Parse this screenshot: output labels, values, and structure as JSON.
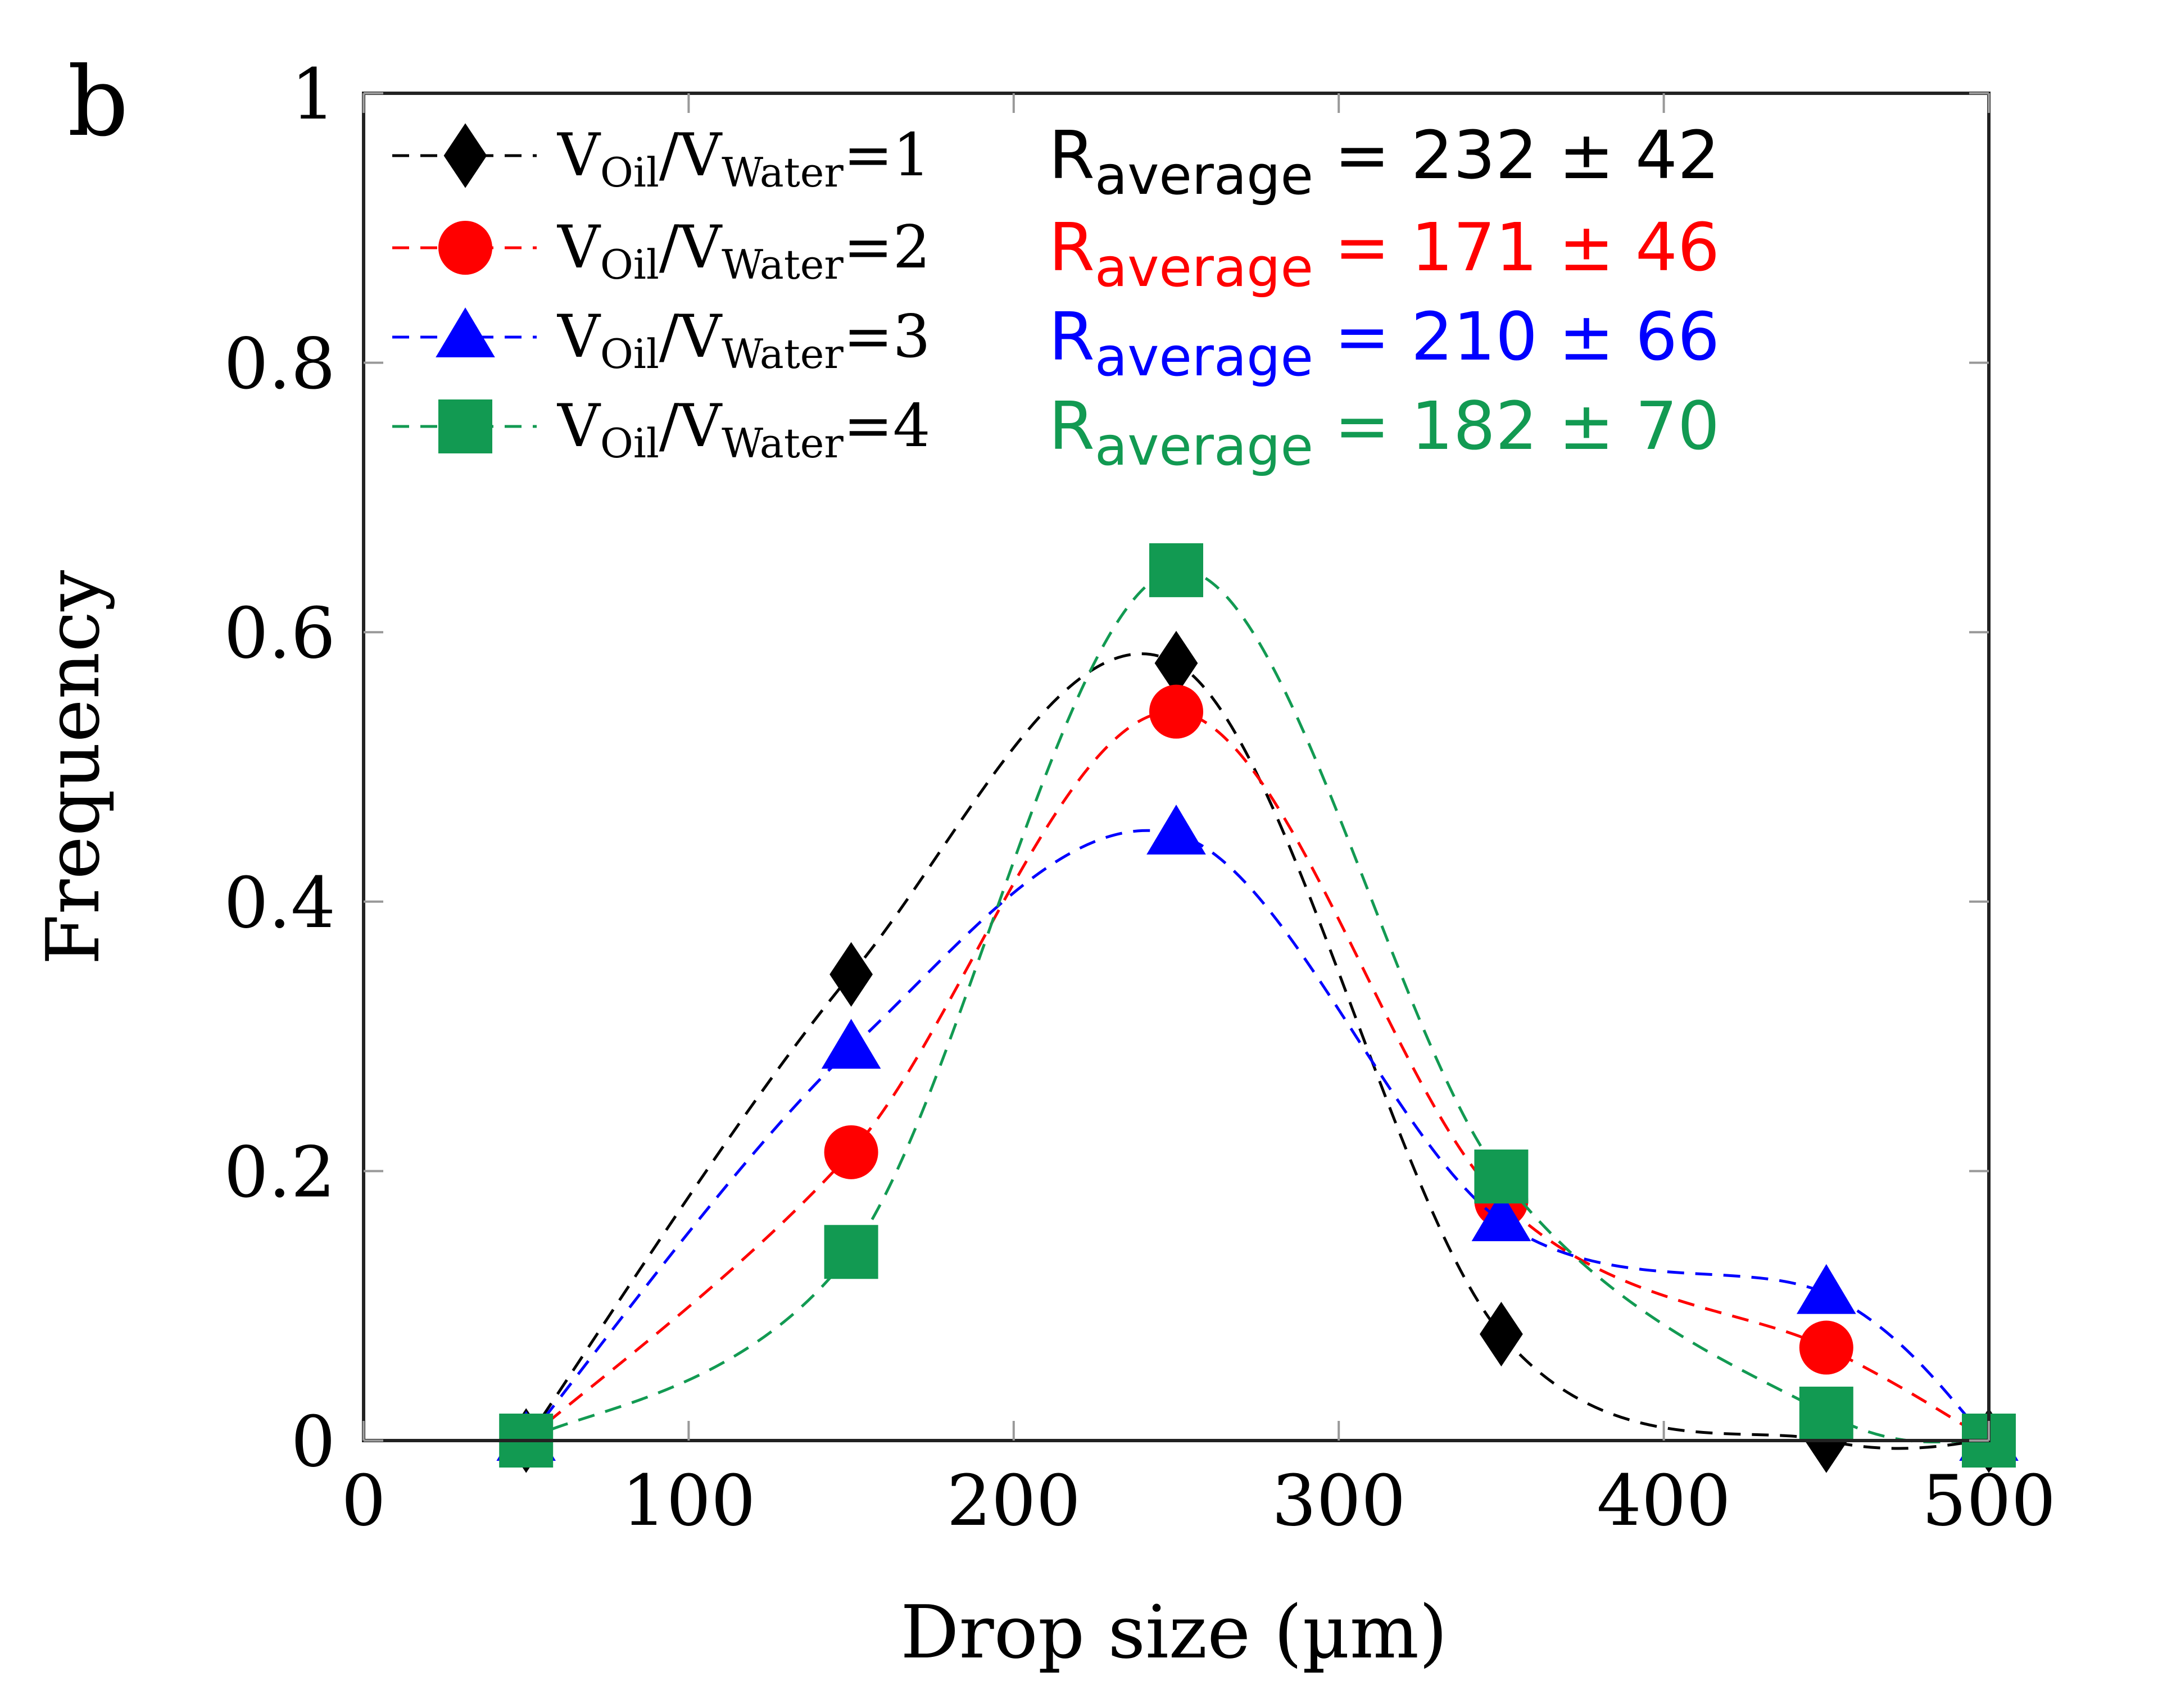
{
  "chart_data": {
    "type": "line",
    "panel_label": "b",
    "xlabel": "Drop size (µm)",
    "ylabel": "Frequency",
    "xlim": [
      0,
      500
    ],
    "ylim": [
      0,
      1
    ],
    "xticks": [
      "0",
      "100",
      "200",
      "300",
      "400",
      "500"
    ],
    "yticks": [
      "0",
      "0.2",
      "0.4",
      "0.6",
      "0.8",
      "1"
    ],
    "grid": false,
    "legend_position": "top-left",
    "x": [
      50,
      150,
      250,
      350,
      450,
      500
    ],
    "series": [
      {
        "name": "VOil/VWater=1",
        "ratio": "1",
        "marker": "diamond",
        "color": "#000000",
        "values": [
          0,
          0.346,
          0.577,
          0.079,
          0,
          0
        ],
        "annotation": {
          "r": "R",
          "sub": "average",
          "text": " = 232 ± 42"
        }
      },
      {
        "name": "VOil/VWater=2",
        "ratio": "2",
        "marker": "circle",
        "color": "#ff0000",
        "values": [
          0,
          0.214,
          0.541,
          0.178,
          0.069,
          0
        ],
        "annotation": {
          "r": "R",
          "sub": "average",
          "text": " = 171 ± 46"
        }
      },
      {
        "name": "VOil/VWater=3",
        "ratio": "3",
        "marker": "triangle",
        "color": "#0000ff",
        "values": [
          0,
          0.291,
          0.45,
          0.163,
          0.109,
          0
        ],
        "annotation": {
          "r": "R",
          "sub": "average",
          "text": " = 210 ± 66"
        }
      },
      {
        "name": "VOil/VWater=4",
        "ratio": "4",
        "marker": "square",
        "color": "#129a52",
        "values": [
          0,
          0.14,
          0.646,
          0.196,
          0.02,
          0
        ],
        "annotation": {
          "r": "R",
          "sub": "average",
          "text": " = 182 ± 70"
        }
      }
    ]
  }
}
